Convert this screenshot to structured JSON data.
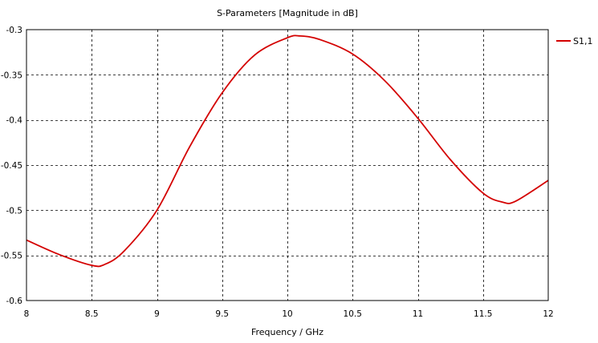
{
  "chart_data": {
    "type": "line",
    "title": "S-Parameters [Magnitude in dB]",
    "xlabel": "Frequency / GHz",
    "ylabel": "",
    "xlim": [
      8,
      12
    ],
    "ylim": [
      -0.6,
      -0.3
    ],
    "xticks": [
      8,
      8.5,
      9,
      9.5,
      10,
      10.5,
      11,
      11.5,
      12
    ],
    "yticks": [
      -0.3,
      -0.35,
      -0.4,
      -0.45,
      -0.5,
      -0.55,
      -0.6
    ],
    "xtick_labels": [
      "8",
      "8.5",
      "9",
      "9.5",
      "10",
      "10.5",
      "11",
      "11.5",
      "12"
    ],
    "ytick_labels": [
      "-0.3",
      "-0.35",
      "-0.4",
      "-0.45",
      "-0.5",
      "-0.55",
      "-0.6"
    ],
    "grid": true,
    "legend_position": "top-right",
    "series": [
      {
        "name": "S1,1",
        "color": "#d40000",
        "x": [
          8.0,
          8.25,
          8.5,
          8.6,
          8.75,
          9.0,
          9.25,
          9.5,
          9.75,
          10.0,
          10.1,
          10.25,
          10.5,
          10.75,
          11.0,
          11.25,
          11.5,
          11.65,
          11.75,
          12.0
        ],
        "y": [
          -0.533,
          -0.549,
          -0.561,
          -0.56,
          -0.545,
          -0.5,
          -0.43,
          -0.37,
          -0.328,
          -0.309,
          -0.307,
          -0.311,
          -0.327,
          -0.357,
          -0.398,
          -0.444,
          -0.481,
          -0.491,
          -0.49,
          -0.467
        ]
      }
    ]
  }
}
